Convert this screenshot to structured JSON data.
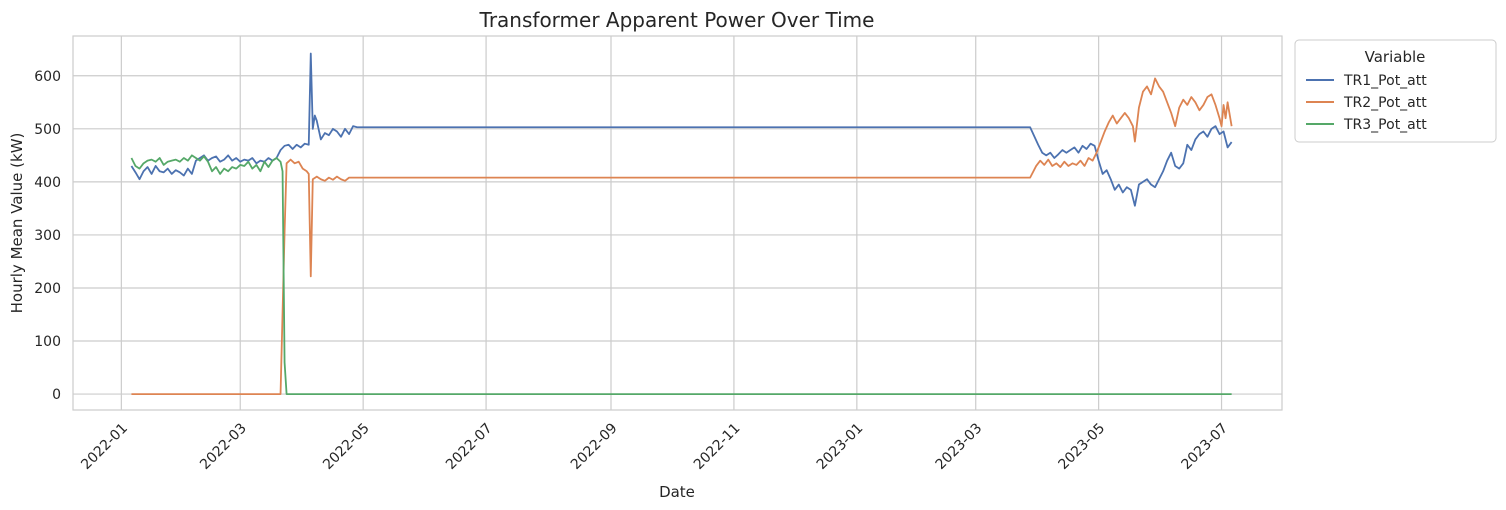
{
  "chart_data": {
    "type": "line",
    "title": "Transformer Apparent Power Over Time",
    "xlabel": "Date",
    "ylabel": "Hourly Mean Value (kW)",
    "x_ticks": [
      "2022-01",
      "2022-03",
      "2022-05",
      "2022-07",
      "2022-09",
      "2022-11",
      "2023-01",
      "2023-03",
      "2023-05",
      "2023-07"
    ],
    "y_ticks": [
      0,
      100,
      200,
      300,
      400,
      500,
      600
    ],
    "xlim": [
      "2021-12-08",
      "2023-07-31"
    ],
    "ylim": [
      -30,
      675
    ],
    "grid": true,
    "legend": {
      "title": "Variable",
      "placement": "outside-right"
    },
    "series": [
      {
        "name": "TR1_Pot_att",
        "color": "#4c72b0",
        "points": [
          [
            "2022-01-06",
            430
          ],
          [
            "2022-01-08",
            418
          ],
          [
            "2022-01-10",
            405
          ],
          [
            "2022-01-12",
            420
          ],
          [
            "2022-01-14",
            428
          ],
          [
            "2022-01-16",
            415
          ],
          [
            "2022-01-18",
            430
          ],
          [
            "2022-01-20",
            420
          ],
          [
            "2022-01-22",
            418
          ],
          [
            "2022-01-24",
            425
          ],
          [
            "2022-01-26",
            415
          ],
          [
            "2022-01-28",
            422
          ],
          [
            "2022-01-30",
            418
          ],
          [
            "2022-02-01",
            412
          ],
          [
            "2022-02-03",
            425
          ],
          [
            "2022-02-05",
            415
          ],
          [
            "2022-02-07",
            440
          ],
          [
            "2022-02-09",
            445
          ],
          [
            "2022-02-11",
            450
          ],
          [
            "2022-02-13",
            440
          ],
          [
            "2022-02-15",
            445
          ],
          [
            "2022-02-17",
            448
          ],
          [
            "2022-02-19",
            438
          ],
          [
            "2022-02-21",
            442
          ],
          [
            "2022-02-23",
            450
          ],
          [
            "2022-02-25",
            440
          ],
          [
            "2022-02-27",
            445
          ],
          [
            "2022-03-01",
            438
          ],
          [
            "2022-03-03",
            442
          ],
          [
            "2022-03-05",
            440
          ],
          [
            "2022-03-07",
            445
          ],
          [
            "2022-03-09",
            435
          ],
          [
            "2022-03-11",
            440
          ],
          [
            "2022-03-13",
            438
          ],
          [
            "2022-03-15",
            445
          ],
          [
            "2022-03-17",
            440
          ],
          [
            "2022-03-19",
            445
          ],
          [
            "2022-03-21",
            460
          ],
          [
            "2022-03-23",
            468
          ],
          [
            "2022-03-25",
            470
          ],
          [
            "2022-03-27",
            462
          ],
          [
            "2022-03-29",
            470
          ],
          [
            "2022-03-31",
            465
          ],
          [
            "2022-04-02",
            472
          ],
          [
            "2022-04-04",
            470
          ],
          [
            "2022-04-05",
            642
          ],
          [
            "2022-04-06",
            500
          ],
          [
            "2022-04-07",
            525
          ],
          [
            "2022-04-08",
            515
          ],
          [
            "2022-04-10",
            480
          ],
          [
            "2022-04-12",
            492
          ],
          [
            "2022-04-14",
            488
          ],
          [
            "2022-04-16",
            500
          ],
          [
            "2022-04-18",
            495
          ],
          [
            "2022-04-20",
            485
          ],
          [
            "2022-04-22",
            500
          ],
          [
            "2022-04-24",
            490
          ],
          [
            "2022-04-26",
            505
          ],
          [
            "2022-04-28",
            503
          ],
          [
            "2022-05-01",
            503
          ],
          [
            "2023-03-28",
            503
          ],
          [
            "2023-04-01",
            470
          ],
          [
            "2023-04-03",
            455
          ],
          [
            "2023-04-05",
            450
          ],
          [
            "2023-04-07",
            455
          ],
          [
            "2023-04-09",
            445
          ],
          [
            "2023-04-11",
            452
          ],
          [
            "2023-04-13",
            460
          ],
          [
            "2023-04-15",
            455
          ],
          [
            "2023-04-17",
            460
          ],
          [
            "2023-04-19",
            465
          ],
          [
            "2023-04-21",
            455
          ],
          [
            "2023-04-23",
            468
          ],
          [
            "2023-04-25",
            462
          ],
          [
            "2023-04-27",
            472
          ],
          [
            "2023-04-29",
            468
          ],
          [
            "2023-05-01",
            440
          ],
          [
            "2023-05-03",
            415
          ],
          [
            "2023-05-05",
            422
          ],
          [
            "2023-05-07",
            405
          ],
          [
            "2023-05-09",
            385
          ],
          [
            "2023-05-11",
            395
          ],
          [
            "2023-05-13",
            380
          ],
          [
            "2023-05-15",
            390
          ],
          [
            "2023-05-17",
            385
          ],
          [
            "2023-05-19",
            355
          ],
          [
            "2023-05-21",
            395
          ],
          [
            "2023-05-23",
            400
          ],
          [
            "2023-05-25",
            405
          ],
          [
            "2023-05-27",
            395
          ],
          [
            "2023-05-29",
            390
          ],
          [
            "2023-05-31",
            405
          ],
          [
            "2023-06-02",
            420
          ],
          [
            "2023-06-04",
            440
          ],
          [
            "2023-06-06",
            455
          ],
          [
            "2023-06-08",
            430
          ],
          [
            "2023-06-10",
            425
          ],
          [
            "2023-06-12",
            435
          ],
          [
            "2023-06-14",
            470
          ],
          [
            "2023-06-16",
            460
          ],
          [
            "2023-06-18",
            480
          ],
          [
            "2023-06-20",
            490
          ],
          [
            "2023-06-22",
            495
          ],
          [
            "2023-06-24",
            485
          ],
          [
            "2023-06-26",
            500
          ],
          [
            "2023-06-28",
            505
          ],
          [
            "2023-06-30",
            490
          ],
          [
            "2023-07-02",
            495
          ],
          [
            "2023-07-04",
            465
          ],
          [
            "2023-07-06",
            475
          ]
        ]
      },
      {
        "name": "TR2_Pot_att",
        "color": "#dd8452",
        "points": [
          [
            "2022-01-06",
            0
          ],
          [
            "2022-03-21",
            0
          ],
          [
            "2022-03-23",
            305
          ],
          [
            "2022-03-24",
            435
          ],
          [
            "2022-03-26",
            442
          ],
          [
            "2022-03-28",
            435
          ],
          [
            "2022-03-30",
            438
          ],
          [
            "2022-04-01",
            425
          ],
          [
            "2022-04-03",
            420
          ],
          [
            "2022-04-04",
            415
          ],
          [
            "2022-04-05",
            222
          ],
          [
            "2022-04-06",
            405
          ],
          [
            "2022-04-08",
            410
          ],
          [
            "2022-04-10",
            405
          ],
          [
            "2022-04-12",
            402
          ],
          [
            "2022-04-14",
            408
          ],
          [
            "2022-04-16",
            404
          ],
          [
            "2022-04-18",
            410
          ],
          [
            "2022-04-20",
            405
          ],
          [
            "2022-04-22",
            402
          ],
          [
            "2022-04-24",
            408
          ],
          [
            "2022-04-26",
            408
          ],
          [
            "2023-03-28",
            408
          ],
          [
            "2023-03-31",
            430
          ],
          [
            "2023-04-02",
            440
          ],
          [
            "2023-04-04",
            432
          ],
          [
            "2023-04-06",
            442
          ],
          [
            "2023-04-08",
            430
          ],
          [
            "2023-04-10",
            435
          ],
          [
            "2023-04-12",
            428
          ],
          [
            "2023-04-14",
            438
          ],
          [
            "2023-04-16",
            430
          ],
          [
            "2023-04-18",
            435
          ],
          [
            "2023-04-20",
            432
          ],
          [
            "2023-04-22",
            440
          ],
          [
            "2023-04-24",
            430
          ],
          [
            "2023-04-26",
            445
          ],
          [
            "2023-04-28",
            440
          ],
          [
            "2023-04-30",
            455
          ],
          [
            "2023-05-02",
            475
          ],
          [
            "2023-05-04",
            495
          ],
          [
            "2023-05-06",
            512
          ],
          [
            "2023-05-08",
            525
          ],
          [
            "2023-05-10",
            510
          ],
          [
            "2023-05-12",
            520
          ],
          [
            "2023-05-14",
            530
          ],
          [
            "2023-05-16",
            520
          ],
          [
            "2023-05-18",
            505
          ],
          [
            "2023-05-19",
            476
          ],
          [
            "2023-05-21",
            540
          ],
          [
            "2023-05-23",
            570
          ],
          [
            "2023-05-25",
            580
          ],
          [
            "2023-05-27",
            565
          ],
          [
            "2023-05-29",
            595
          ],
          [
            "2023-05-31",
            580
          ],
          [
            "2023-06-02",
            570
          ],
          [
            "2023-06-04",
            550
          ],
          [
            "2023-06-06",
            530
          ],
          [
            "2023-06-08",
            505
          ],
          [
            "2023-06-10",
            540
          ],
          [
            "2023-06-12",
            555
          ],
          [
            "2023-06-14",
            545
          ],
          [
            "2023-06-16",
            560
          ],
          [
            "2023-06-18",
            550
          ],
          [
            "2023-06-20",
            535
          ],
          [
            "2023-06-22",
            545
          ],
          [
            "2023-06-24",
            560
          ],
          [
            "2023-06-26",
            565
          ],
          [
            "2023-06-28",
            545
          ],
          [
            "2023-06-30",
            520
          ],
          [
            "2023-07-01",
            505
          ],
          [
            "2023-07-02",
            545
          ],
          [
            "2023-07-03",
            520
          ],
          [
            "2023-07-04",
            550
          ],
          [
            "2023-07-06",
            505
          ]
        ]
      },
      {
        "name": "TR3_Pot_att",
        "color": "#55a868",
        "points": [
          [
            "2022-01-06",
            445
          ],
          [
            "2022-01-08",
            430
          ],
          [
            "2022-01-10",
            425
          ],
          [
            "2022-01-12",
            435
          ],
          [
            "2022-01-14",
            440
          ],
          [
            "2022-01-16",
            442
          ],
          [
            "2022-01-18",
            438
          ],
          [
            "2022-01-20",
            445
          ],
          [
            "2022-01-22",
            432
          ],
          [
            "2022-01-24",
            438
          ],
          [
            "2022-01-26",
            440
          ],
          [
            "2022-01-28",
            442
          ],
          [
            "2022-01-30",
            438
          ],
          [
            "2022-02-01",
            445
          ],
          [
            "2022-02-03",
            440
          ],
          [
            "2022-02-05",
            450
          ],
          [
            "2022-02-07",
            445
          ],
          [
            "2022-02-09",
            440
          ],
          [
            "2022-02-11",
            448
          ],
          [
            "2022-02-13",
            438
          ],
          [
            "2022-02-15",
            420
          ],
          [
            "2022-02-17",
            428
          ],
          [
            "2022-02-19",
            415
          ],
          [
            "2022-02-21",
            425
          ],
          [
            "2022-02-23",
            420
          ],
          [
            "2022-02-25",
            428
          ],
          [
            "2022-02-27",
            425
          ],
          [
            "2022-03-01",
            432
          ],
          [
            "2022-03-03",
            430
          ],
          [
            "2022-03-05",
            438
          ],
          [
            "2022-03-07",
            425
          ],
          [
            "2022-03-09",
            432
          ],
          [
            "2022-03-11",
            420
          ],
          [
            "2022-03-13",
            438
          ],
          [
            "2022-03-15",
            428
          ],
          [
            "2022-03-17",
            440
          ],
          [
            "2022-03-19",
            445
          ],
          [
            "2022-03-21",
            438
          ],
          [
            "2022-03-22",
            420
          ],
          [
            "2022-03-23",
            60
          ],
          [
            "2022-03-24",
            0
          ],
          [
            "2023-07-06",
            0
          ]
        ]
      }
    ]
  }
}
